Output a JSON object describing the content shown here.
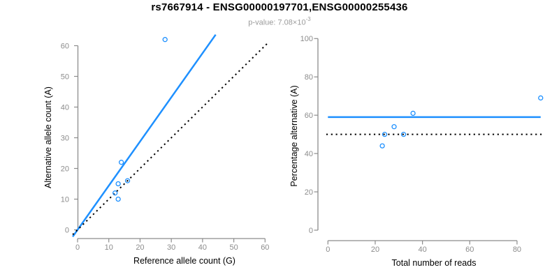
{
  "header": {
    "title": "rs7667914 - ENSG00000197701,ENSG00000255436",
    "subtitle_text": "p-value: 7.08×10",
    "subtitle_exponent": "-3"
  },
  "colors": {
    "accent_blue": "#1E90FF",
    "line_black": "#000000",
    "axis_gray": "#8C8C8C",
    "subtitle_gray": "#9B9B9B"
  },
  "chart_data": [
    {
      "type": "scatter",
      "panel": "left",
      "xlabel": "Reference allele count (G)",
      "ylabel": "Alternative allele count (A)",
      "xlim": [
        0,
        60
      ],
      "ylim": [
        0,
        62
      ],
      "xticks": [
        0,
        10,
        20,
        30,
        40,
        50,
        60
      ],
      "yticks": [
        0,
        10,
        20,
        30,
        40,
        50,
        60
      ],
      "grid": false,
      "legend": null,
      "points": [
        [
          28,
          62
        ],
        [
          14,
          22
        ],
        [
          16,
          16
        ],
        [
          13,
          15
        ],
        [
          12,
          12
        ],
        [
          13,
          10
        ]
      ],
      "lines": [
        {
          "name": "fit-line-59pct",
          "kind": "abline",
          "slope": 1.439,
          "intercept": 0,
          "style": "solid",
          "color": "#1E90FF",
          "width": 2.5
        },
        {
          "name": "identity-line-50pct",
          "kind": "abline",
          "slope": 1.0,
          "intercept": 0,
          "style": "dotted",
          "color": "#000000",
          "width": 2
        }
      ]
    },
    {
      "type": "scatter",
      "panel": "right",
      "xlabel": "Total number of reads",
      "ylabel": "Percentage alternative (A)",
      "xlim": [
        0,
        90
      ],
      "ylim": [
        0,
        100
      ],
      "xticks": [
        0,
        20,
        40,
        60,
        80
      ],
      "yticks": [
        0,
        20,
        40,
        60,
        80,
        100
      ],
      "grid": false,
      "legend": null,
      "points": [
        [
          90,
          69
        ],
        [
          36,
          61
        ],
        [
          28,
          54
        ],
        [
          24,
          50
        ],
        [
          32,
          50
        ],
        [
          23,
          44
        ]
      ],
      "lines": [
        {
          "name": "fit-line-59pct",
          "kind": "hline",
          "y": 59,
          "style": "solid",
          "color": "#1E90FF",
          "width": 2.5
        },
        {
          "name": "expected-line-50pct",
          "kind": "hline",
          "y": 50,
          "style": "dotted",
          "color": "#000000",
          "width": 2
        }
      ]
    }
  ]
}
